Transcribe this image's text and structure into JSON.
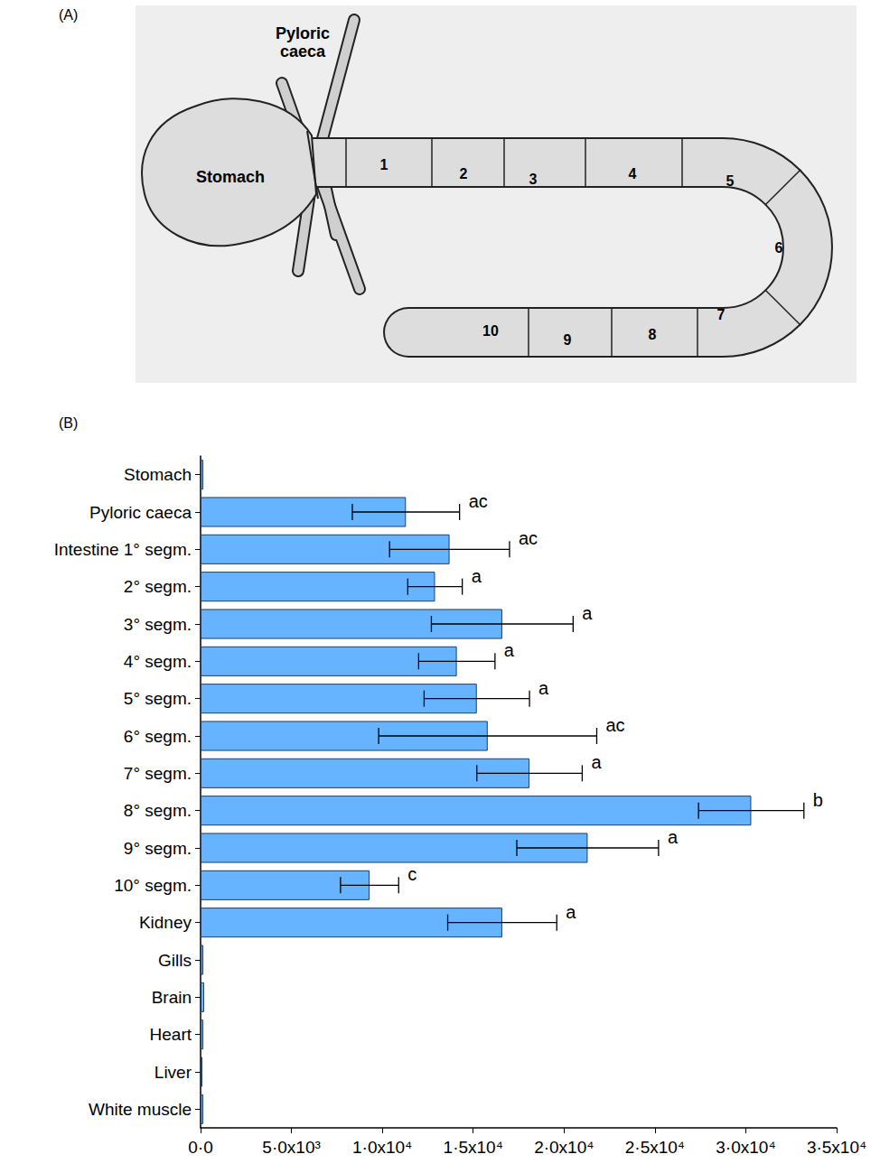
{
  "diagram": {
    "letter": "(A)",
    "stomach": "Stomach",
    "pyloric_caeca": "Pyloric caeca",
    "segments": [
      "1",
      "2",
      "3",
      "4",
      "5",
      "6",
      "7",
      "8",
      "9",
      "10"
    ]
  },
  "chart_data": {
    "type": "bar",
    "letter": "(B)",
    "orientation": "horizontal",
    "categories": [
      "Stomach",
      "Pyloric caeca",
      "Intestine 1° segm.",
      "2° segm.",
      "3° segm.",
      "4° segm.",
      "5° segm.",
      "6° segm.",
      "7° segm.",
      "8° segm.",
      "9° segm.",
      "10° segm.",
      "Kidney",
      "Gills",
      "Brain",
      "Heart",
      "Liver",
      "White muscle"
    ],
    "values": [
      150,
      11300,
      13700,
      12900,
      16600,
      14100,
      15200,
      15800,
      18100,
      30300,
      21300,
      9300,
      16600,
      150,
      200,
      150,
      100,
      150
    ],
    "errors": [
      null,
      2950,
      3300,
      1500,
      3900,
      2100,
      2900,
      6000,
      2900,
      2900,
      3900,
      1600,
      3000,
      null,
      null,
      null,
      null,
      null
    ],
    "significance_labels": [
      null,
      "ac",
      "ac",
      "a",
      "a",
      "a",
      "a",
      "ac",
      "a",
      "b",
      "a",
      "c",
      "a",
      null,
      null,
      null,
      null,
      null
    ],
    "color": "#66b3ff",
    "xlim": [
      0,
      35000
    ],
    "xticks": [
      {
        "value": 0,
        "label": "0·0"
      },
      {
        "value": 5000,
        "label": "5·0x10³"
      },
      {
        "value": 10000,
        "label": "1·0x10⁴"
      },
      {
        "value": 15000,
        "label": "1·5x10⁴"
      },
      {
        "value": 20000,
        "label": "2·0x10⁴"
      },
      {
        "value": 25000,
        "label": "2·5x10⁴"
      },
      {
        "value": 30000,
        "label": "3·0x10⁴"
      },
      {
        "value": 35000,
        "label": "3·5x10⁴"
      }
    ],
    "grid": false
  }
}
